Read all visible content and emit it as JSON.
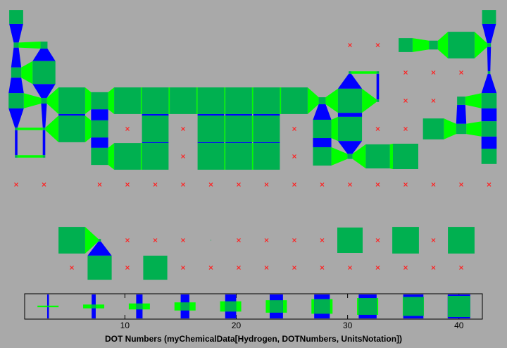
{
  "chart_data": {
    "type": "glyph-table",
    "rows": [
      [
        22,
        22
      ],
      [
        8,
        11,
        null,
        null,
        22,
        14,
        42,
        6
      ],
      [
        16,
        36,
        4,
        4,
        null,
        null,
        null,
        4
      ],
      [
        24,
        9,
        42,
        27,
        42,
        42,
        42,
        42,
        42,
        42,
        42,
        11,
        38,
        4,
        null,
        null,
        13,
        24
      ],
      [
        4,
        4,
        42,
        27,
        null,
        42,
        null,
        42,
        42,
        42,
        null,
        29,
        38,
        null,
        null,
        33,
        16,
        24
      ],
      [
        4,
        4,
        27,
        42,
        42,
        null,
        42,
        42,
        42,
        null,
        29,
        8,
        38,
        40,
        24
      ],
      [
        null,
        null,
        null,
        null,
        null,
        null,
        null,
        null,
        null,
        null,
        null,
        null,
        null,
        null,
        null,
        null,
        null
      ],
      [
        42,
        4,
        null,
        null,
        null,
        1,
        null,
        null,
        null,
        null,
        40,
        null,
        42,
        null,
        42
      ],
      [
        null,
        38,
        null,
        38,
        null,
        null,
        null,
        null,
        null,
        null,
        null,
        null,
        null,
        null,
        null
      ]
    ],
    "legend_values": [
      3.1,
      7.2,
      11.3,
      15.4,
      19.5,
      23.6,
      27.7,
      31.8,
      35.9,
      40
    ],
    "xlim": [
      1,
      42.1
    ],
    "xticks": [
      10,
      20,
      30,
      40
    ],
    "xlabel": "DOT Numbers (myChemicalData[Hydrogen, DOTNumbers, UnitsNotation])",
    "colors": {
      "square": "#00b050",
      "horizontal": "#00ff00",
      "vertical": "#0000ff",
      "missing": "#ff2020"
    }
  }
}
